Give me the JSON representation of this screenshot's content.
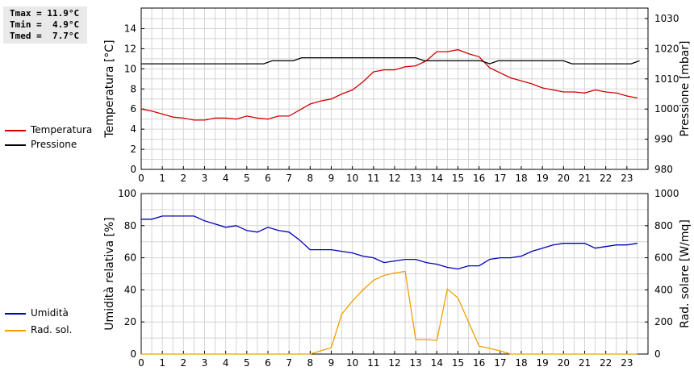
{
  "stats": {
    "tmax": "Tmax = 11.9°C",
    "tmin": "Tmin =  4.9°C",
    "tmed": "Tmed =  7.7°C"
  },
  "legend": {
    "top": [
      {
        "label": "Temperatura",
        "color": "#d40000"
      },
      {
        "label": "Pressione",
        "color": "#000000"
      }
    ],
    "bottom": [
      {
        "label": "Umidità",
        "color": "#0000b4"
      },
      {
        "label": "Rad. sol.",
        "color": "#f0a000"
      }
    ]
  },
  "chart_data": [
    {
      "type": "line",
      "ylabel": "Temperatura [°C]",
      "y2label": "Pressione [mbar]",
      "ylim": [
        0,
        15
      ],
      "y2lim": [
        980,
        1030
      ],
      "xlim": [
        0,
        24
      ],
      "xticks": [
        "0",
        "1",
        "2",
        "3",
        "4",
        "5",
        "6",
        "7",
        "8",
        "9",
        "10",
        "11",
        "12",
        "13",
        "14",
        "15",
        "16",
        "17",
        "18",
        "19",
        "20",
        "21",
        "22",
        "23"
      ],
      "yticks": [
        "0",
        "2",
        "4",
        "6",
        "8",
        "10",
        "12",
        "14"
      ],
      "y2ticks": [
        "980",
        "990",
        "1000",
        "1010",
        "1020",
        "1030"
      ],
      "grid": true,
      "legend_position": "left",
      "series": [
        {
          "name": "Temperatura",
          "axis": "left",
          "color": "#d40000",
          "x": [
            0,
            0.5,
            1,
            1.5,
            2,
            2.5,
            3,
            3.5,
            4,
            4.5,
            5,
            5.5,
            6,
            6.5,
            7,
            7.5,
            8,
            8.5,
            9,
            9.5,
            10,
            10.5,
            11,
            11.5,
            12,
            12.5,
            13,
            13.5,
            14,
            14.5,
            15,
            15.5,
            16,
            16.5,
            17,
            17.5,
            18,
            18.5,
            19,
            19.5,
            20,
            20.5,
            21,
            21.5,
            22,
            22.5,
            23,
            23.5
          ],
          "y": [
            6.0,
            5.8,
            5.5,
            5.2,
            5.1,
            4.9,
            4.9,
            5.1,
            5.1,
            5.0,
            5.3,
            5.1,
            5.0,
            5.3,
            5.3,
            5.9,
            6.5,
            6.8,
            7.0,
            7.5,
            7.9,
            8.7,
            9.7,
            9.9,
            9.9,
            10.2,
            10.3,
            10.8,
            11.7,
            11.7,
            11.9,
            11.5,
            11.2,
            10.1,
            9.6,
            9.1,
            8.8,
            8.5,
            8.1,
            7.9,
            7.7,
            7.7,
            7.6,
            7.9,
            7.7,
            7.6,
            7.3,
            7.1
          ]
        },
        {
          "name": "Pressione",
          "axis": "right",
          "color": "#000000",
          "x": [
            0,
            5.8,
            6.2,
            7.2,
            7.6,
            13.0,
            13.4,
            16.1,
            16.5,
            16.9,
            20.0,
            20.4,
            23.2,
            23.6
          ],
          "y": [
            1015,
            1015,
            1016,
            1016,
            1017,
            1017,
            1016,
            1016,
            1015,
            1016,
            1016,
            1015,
            1015,
            1016
          ]
        }
      ]
    },
    {
      "type": "line",
      "ylabel": "Umidità relativa [%]",
      "y2label": "Rad. solare [W/mq]",
      "ylim": [
        0,
        100
      ],
      "y2lim": [
        0,
        1000
      ],
      "xlim": [
        0,
        24
      ],
      "xticks": [
        "0",
        "1",
        "2",
        "3",
        "4",
        "5",
        "6",
        "7",
        "8",
        "9",
        "10",
        "11",
        "12",
        "13",
        "14",
        "15",
        "16",
        "17",
        "18",
        "19",
        "20",
        "21",
        "22",
        "23"
      ],
      "yticks": [
        "0",
        "20",
        "40",
        "60",
        "80",
        "100"
      ],
      "y2ticks": [
        "0",
        "200",
        "400",
        "600",
        "800",
        "1000"
      ],
      "grid": true,
      "legend_position": "left",
      "series": [
        {
          "name": "Umidità",
          "axis": "left",
          "color": "#0000b4",
          "x": [
            0,
            0.5,
            1,
            1.5,
            2,
            2.5,
            3,
            3.5,
            4,
            4.5,
            5,
            5.5,
            6,
            6.5,
            7,
            7.5,
            8,
            8.5,
            9,
            9.5,
            10,
            10.5,
            11,
            11.5,
            12,
            12.5,
            13,
            13.5,
            14,
            14.5,
            15,
            15.5,
            16,
            16.5,
            17,
            17.5,
            18,
            18.5,
            19,
            19.5,
            20,
            20.5,
            21,
            21.5,
            22,
            22.5,
            23,
            23.5
          ],
          "y": [
            84,
            84,
            86,
            86,
            86,
            86,
            83,
            81,
            79,
            80,
            77,
            76,
            79,
            77,
            76,
            71,
            65,
            65,
            65,
            64,
            63,
            61,
            60,
            57,
            58,
            59,
            59,
            57,
            56,
            54,
            53,
            55,
            55,
            59,
            60,
            60,
            61,
            64,
            66,
            68,
            69,
            69,
            69,
            66,
            67,
            68,
            68,
            69
          ]
        },
        {
          "name": "Rad. sol.",
          "axis": "right",
          "color": "#f0a000",
          "x": [
            0,
            1,
            2,
            3,
            4,
            5,
            6,
            7,
            8,
            8.5,
            9,
            9.5,
            10,
            10.5,
            11,
            11.5,
            12,
            12.5,
            13,
            13.5,
            14,
            14.5,
            15,
            15.5,
            16,
            16.5,
            17,
            17.5,
            18,
            19,
            20,
            21,
            22,
            23,
            23.5
          ],
          "y": [
            0,
            0,
            0,
            0,
            0,
            0,
            0,
            0,
            0,
            20,
            40,
            250,
            330,
            400,
            460,
            490,
            505,
            515,
            90,
            90,
            85,
            405,
            350,
            200,
            50,
            35,
            20,
            0,
            0,
            0,
            0,
            0,
            0,
            0,
            0
          ]
        }
      ]
    }
  ]
}
